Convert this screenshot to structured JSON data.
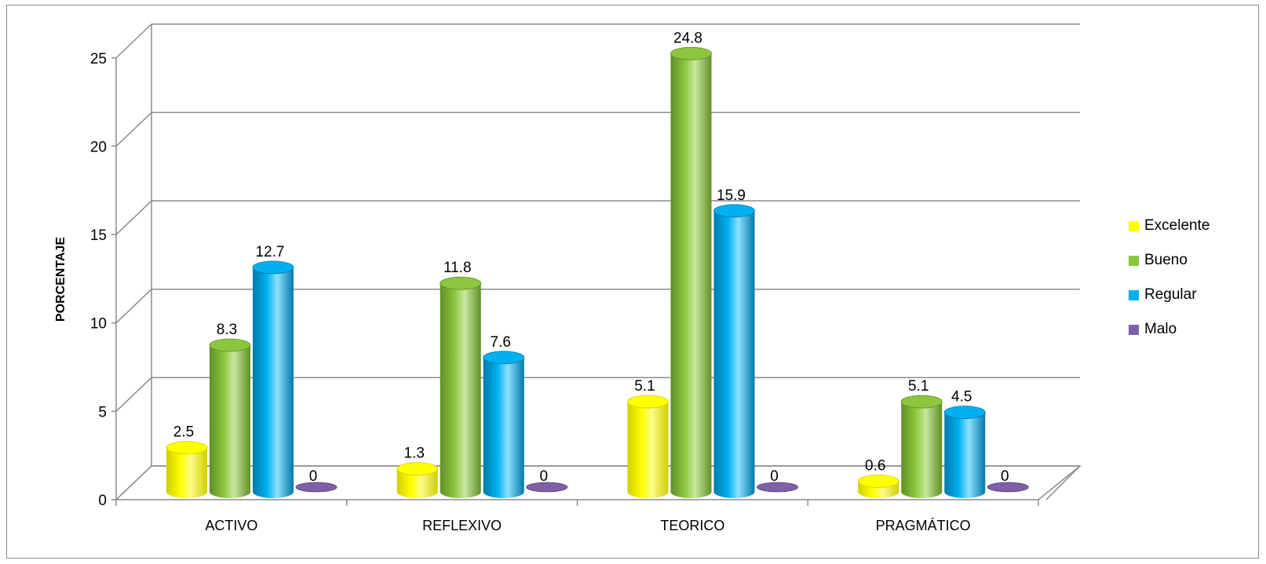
{
  "chart_data": {
    "type": "bar",
    "categories": [
      "ACTIVO",
      "REFLEXIVO",
      "TEORICO",
      "PRAGMÁTICO"
    ],
    "series": [
      {
        "name": "Excelente",
        "values": [
          2.5,
          1.3,
          5.1,
          0.6
        ],
        "color": "#ffff00"
      },
      {
        "name": "Bueno",
        "values": [
          8.3,
          11.8,
          24.8,
          5.1
        ],
        "color": "#8cc63e"
      },
      {
        "name": "Regular",
        "values": [
          12.7,
          7.6,
          15.9,
          4.5
        ],
        "color": "#00b0f0"
      },
      {
        "name": "Malo",
        "values": [
          0,
          0,
          0,
          0
        ],
        "color": "#7f5fa8"
      }
    ],
    "data_labels": [
      [
        "2.5",
        "1.3",
        "5.1",
        "0.6"
      ],
      [
        "8.3",
        "11.8",
        "24.8",
        "5.1"
      ],
      [
        "12.7",
        "7.6",
        "15.9",
        "4.5"
      ],
      [
        "0",
        "0",
        "0",
        "0"
      ]
    ],
    "yticks": [
      "0",
      "5",
      "10",
      "15",
      "20",
      "25"
    ],
    "ylim": [
      0,
      25
    ],
    "ylabel": "PORCENTAJE",
    "xlabel": "",
    "grid": true,
    "legend_position": "right",
    "style": "3d-cylinder"
  }
}
